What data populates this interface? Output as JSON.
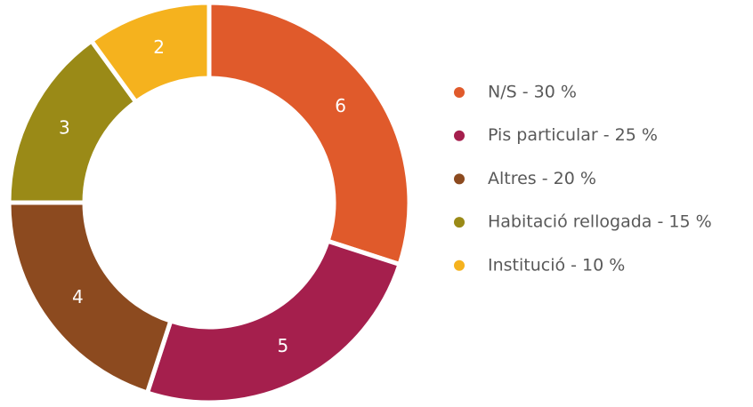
{
  "chart_data": {
    "type": "pie",
    "donut": true,
    "categories": [
      "N/S - 30 %",
      "Pis particular - 25 %",
      "Altres - 20 %",
      "Habitació rellogada - 15 %",
      "Institució - 10 %"
    ],
    "values": [
      6,
      5,
      4,
      3,
      2
    ],
    "colors": [
      "#e05a2b",
      "#a51f4d",
      "#8c4a1f",
      "#9a8a17",
      "#f5b21e"
    ],
    "legend": "right"
  }
}
